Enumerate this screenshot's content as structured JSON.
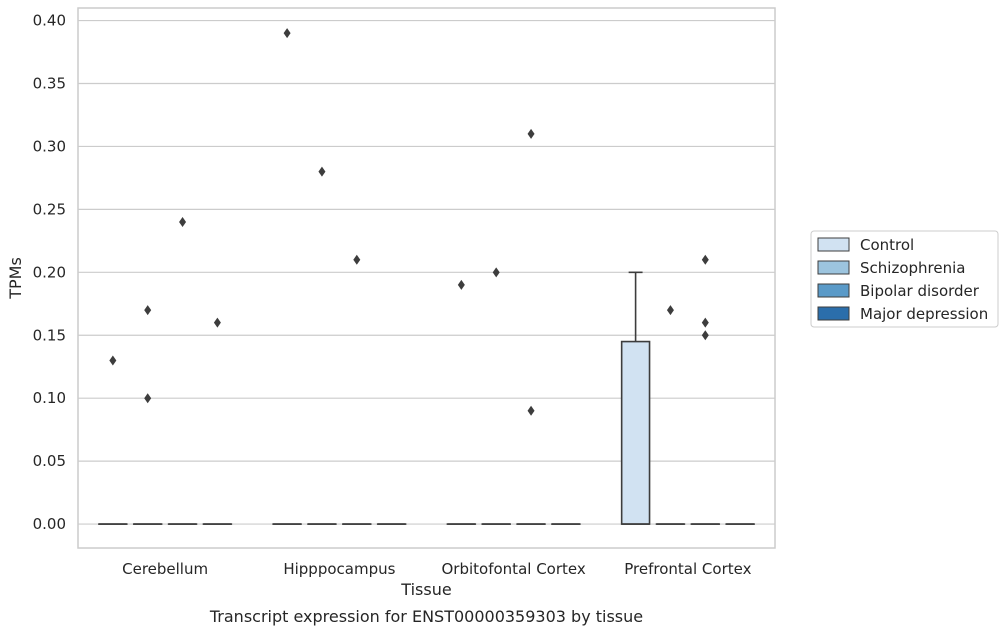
{
  "chart_data": {
    "type": "box",
    "caption": "Transcript expression for ENST00000359303 by tissue",
    "xlabel": "Tissue",
    "ylabel": "TPMs",
    "ylim": [
      -0.019,
      0.41
    ],
    "yticks": [
      "0.00",
      "0.05",
      "0.10",
      "0.15",
      "0.20",
      "0.25",
      "0.30",
      "0.35",
      "0.40"
    ],
    "grid": true,
    "legend_position": "right",
    "categories": [
      "Cerebellum",
      "Hipppocampus",
      "Orbitofontal Cortex",
      "Prefrontal Cortex"
    ],
    "series": [
      {
        "name": "Control",
        "color": "#d1e2f2",
        "boxes": [
          {
            "q1": 0,
            "median": 0,
            "q3": 0,
            "whisker_low": 0,
            "whisker_high": 0,
            "outliers": [
              0.13
            ]
          },
          {
            "q1": 0,
            "median": 0,
            "q3": 0,
            "whisker_low": 0,
            "whisker_high": 0,
            "outliers": [
              0.39
            ]
          },
          {
            "q1": 0,
            "median": 0,
            "q3": 0,
            "whisker_low": 0,
            "whisker_high": 0,
            "outliers": [
              0.19
            ]
          },
          {
            "q1": 0,
            "median": 0,
            "q3": 0.145,
            "whisker_low": 0,
            "whisker_high": 0.2,
            "outliers": []
          }
        ]
      },
      {
        "name": "Schizophrenia",
        "color": "#9cc4de",
        "boxes": [
          {
            "q1": 0,
            "median": 0,
            "q3": 0,
            "whisker_low": 0,
            "whisker_high": 0,
            "outliers": [
              0.17,
              0.1
            ]
          },
          {
            "q1": 0,
            "median": 0,
            "q3": 0,
            "whisker_low": 0,
            "whisker_high": 0,
            "outliers": [
              0.28
            ]
          },
          {
            "q1": 0,
            "median": 0,
            "q3": 0,
            "whisker_low": 0,
            "whisker_high": 0,
            "outliers": [
              0.2
            ]
          },
          {
            "q1": 0,
            "median": 0,
            "q3": 0,
            "whisker_low": 0,
            "whisker_high": 0,
            "outliers": [
              0.17
            ]
          }
        ]
      },
      {
        "name": "Bipolar disorder",
        "color": "#5a9ac8",
        "boxes": [
          {
            "q1": 0,
            "median": 0,
            "q3": 0,
            "whisker_low": 0,
            "whisker_high": 0,
            "outliers": [
              0.24
            ]
          },
          {
            "q1": 0,
            "median": 0,
            "q3": 0,
            "whisker_low": 0,
            "whisker_high": 0,
            "outliers": [
              0.21
            ]
          },
          {
            "q1": 0,
            "median": 0,
            "q3": 0,
            "whisker_low": 0,
            "whisker_high": 0,
            "outliers": [
              0.31,
              0.09
            ]
          },
          {
            "q1": 0,
            "median": 0,
            "q3": 0,
            "whisker_low": 0,
            "whisker_high": 0,
            "outliers": [
              0.21,
              0.16,
              0.15
            ]
          }
        ]
      },
      {
        "name": "Major depression",
        "color": "#2b6eab",
        "boxes": [
          {
            "q1": 0,
            "median": 0,
            "q3": 0,
            "whisker_low": 0,
            "whisker_high": 0,
            "outliers": [
              0.16
            ]
          },
          {
            "q1": 0,
            "median": 0,
            "q3": 0,
            "whisker_low": 0,
            "whisker_high": 0,
            "outliers": []
          },
          {
            "q1": 0,
            "median": 0,
            "q3": 0,
            "whisker_low": 0,
            "whisker_high": 0,
            "outliers": []
          },
          {
            "q1": 0,
            "median": 0,
            "q3": 0,
            "whisker_low": 0,
            "whisker_high": 0,
            "outliers": []
          }
        ]
      }
    ]
  }
}
